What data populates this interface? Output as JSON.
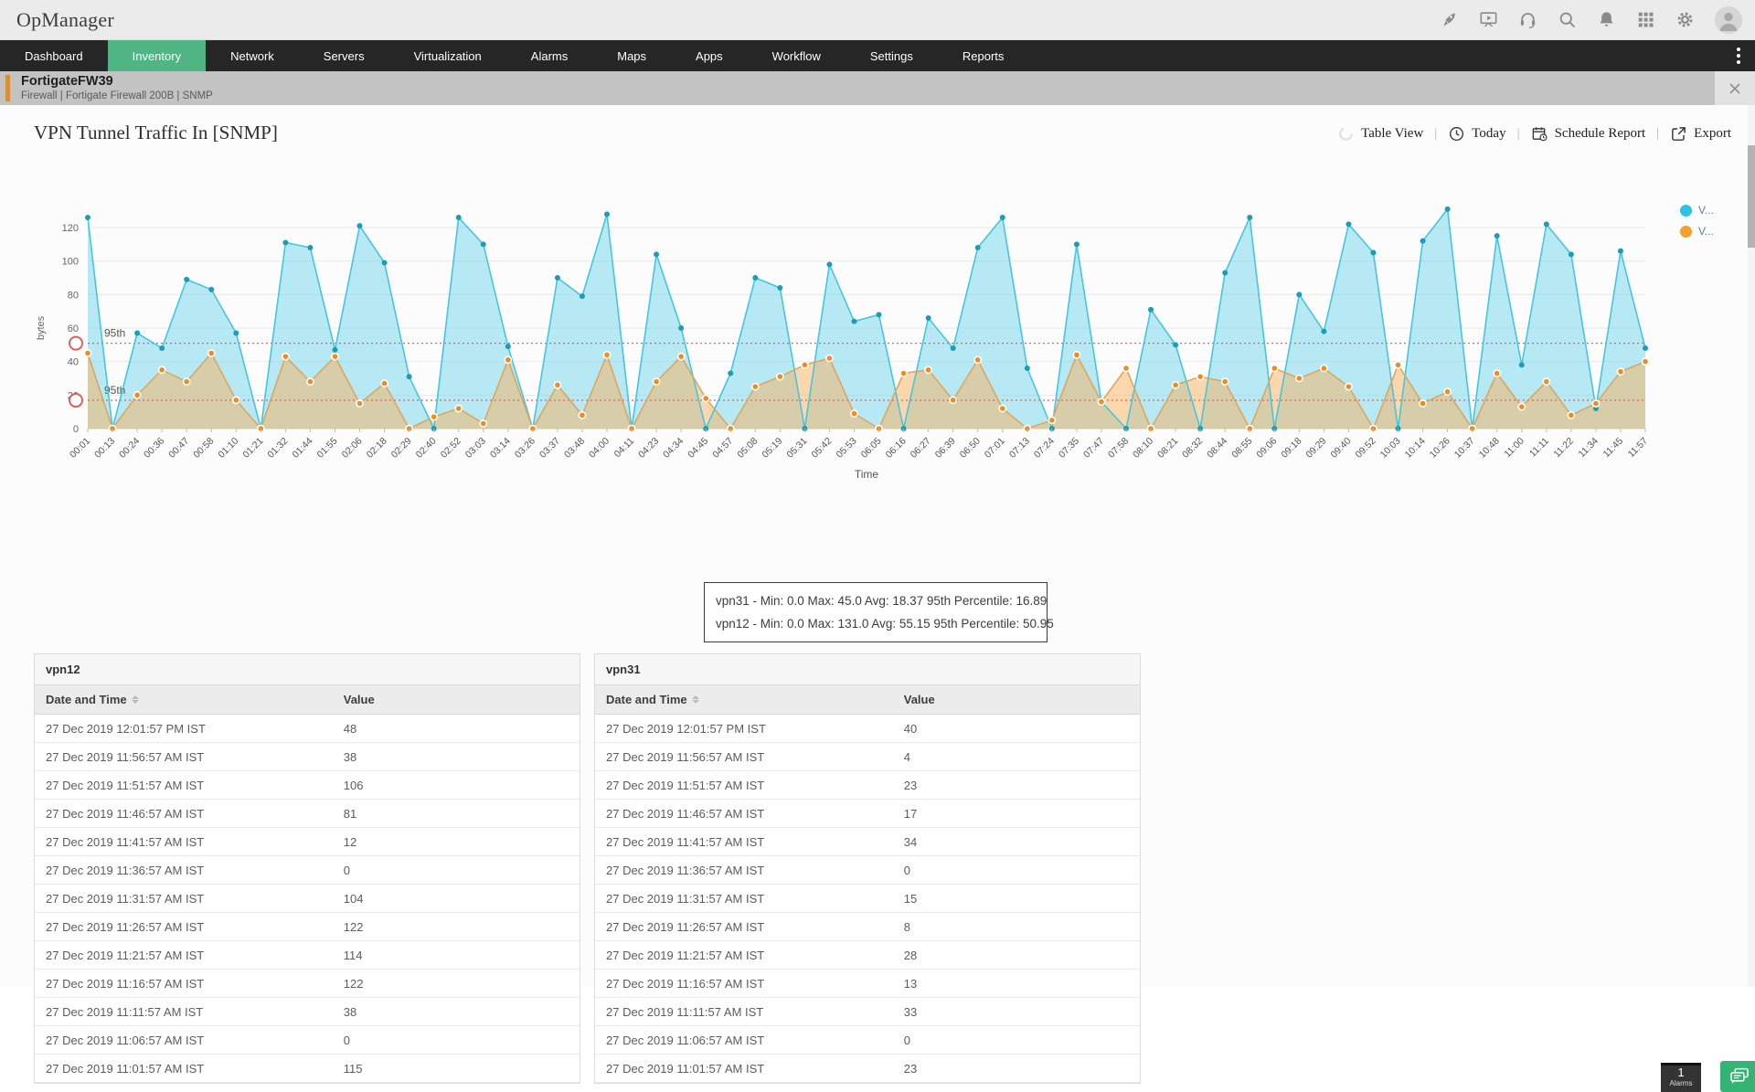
{
  "header": {
    "logo": "OpManager",
    "icons": [
      "rocket-icon",
      "presentation-icon",
      "headset-icon",
      "search-icon",
      "bell-icon",
      "apps-grid-icon",
      "gear-icon"
    ]
  },
  "nav": {
    "items": [
      {
        "label": "Dashboard",
        "active": false
      },
      {
        "label": "Inventory",
        "active": true
      },
      {
        "label": "Network",
        "active": false
      },
      {
        "label": "Servers",
        "active": false
      },
      {
        "label": "Virtualization",
        "active": false
      },
      {
        "label": "Alarms",
        "active": false
      },
      {
        "label": "Maps",
        "active": false
      },
      {
        "label": "Apps",
        "active": false
      },
      {
        "label": "Workflow",
        "active": false
      },
      {
        "label": "Settings",
        "active": false
      },
      {
        "label": "Reports",
        "active": false
      }
    ]
  },
  "device_bar": {
    "name": "FortigateFW39",
    "subtitle": "Firewall | Fortigate Firewall 200B  | SNMP"
  },
  "page": {
    "title": "VPN Tunnel Traffic In [SNMP]"
  },
  "toolbar": {
    "items": [
      {
        "icon": "table-view-icon",
        "label": "Table View"
      },
      {
        "icon": "clock-icon",
        "label": "Today"
      },
      {
        "icon": "schedule-report-icon",
        "label": "Schedule Report"
      },
      {
        "icon": "export-icon",
        "label": "Export"
      }
    ]
  },
  "chart_data": {
    "type": "area",
    "title": "VPN Tunnel Traffic In [SNMP]",
    "xlabel": "Time",
    "ylabel": "bytes",
    "ylim": [
      0,
      140
    ],
    "yticks": [
      0,
      20,
      40,
      60,
      80,
      100,
      120
    ],
    "grid": true,
    "legend_position": "right",
    "legend": [
      {
        "label": "V...",
        "color": "#2cc3e5"
      },
      {
        "label": "V...",
        "color": "#f5a02c"
      }
    ],
    "x": [
      "00:01",
      "00:13",
      "00:24",
      "00:36",
      "00:47",
      "00:58",
      "01:10",
      "01:21",
      "01:32",
      "01:44",
      "01:55",
      "02:06",
      "02:18",
      "02:29",
      "02:40",
      "02:52",
      "03:03",
      "03:14",
      "03:26",
      "03:37",
      "03:48",
      "04:00",
      "04:11",
      "04:23",
      "04:34",
      "04:45",
      "04:57",
      "05:08",
      "05:19",
      "05:31",
      "05:42",
      "05:53",
      "06:05",
      "06:16",
      "06:27",
      "06:39",
      "06:50",
      "07:01",
      "07:13",
      "07:24",
      "07:35",
      "07:47",
      "07:58",
      "08:10",
      "08:21",
      "08:32",
      "08:44",
      "08:55",
      "09:06",
      "09:18",
      "09:29",
      "09:40",
      "09:52",
      "10:03",
      "10:14",
      "10:26",
      "10:37",
      "10:48",
      "11:00",
      "11:11",
      "11:22",
      "11:34",
      "11:45",
      "11:57"
    ],
    "series": [
      {
        "name": "vpn12",
        "line_color": "#45c6df",
        "fill_color": "rgba(125,216,238,0.55)",
        "marker_color": "#1a9db6",
        "values": [
          126,
          0,
          57,
          48,
          89,
          83,
          57,
          0,
          111,
          108,
          47,
          121,
          99,
          31,
          0,
          126,
          110,
          49,
          0,
          90,
          79,
          128,
          0,
          104,
          60,
          0,
          33,
          90,
          84,
          0,
          98,
          64,
          68,
          0,
          66,
          48,
          108,
          126,
          36,
          0,
          110,
          16,
          0,
          71,
          50,
          0,
          93,
          126,
          0,
          80,
          58,
          122,
          105,
          0,
          112,
          131,
          0,
          115,
          38,
          122,
          104,
          12,
          106,
          48
        ]
      },
      {
        "name": "vpn31",
        "line_color": "#ddA65f",
        "fill_color": "rgba(247,178,94,0.5)",
        "marker_color": "#f08c1e",
        "values": [
          45,
          0,
          20,
          35,
          28,
          45,
          17,
          0,
          43,
          28,
          43,
          15,
          27,
          0,
          7,
          12,
          3,
          41,
          0,
          26,
          8,
          44,
          0,
          28,
          43,
          18,
          0,
          25,
          31,
          38,
          42,
          9,
          0,
          33,
          35,
          17,
          41,
          12,
          0,
          5,
          44,
          16,
          36,
          0,
          26,
          31,
          28,
          0,
          36,
          30,
          36,
          25,
          0,
          38,
          15,
          22,
          0,
          33,
          13,
          28,
          8,
          15,
          34,
          40
        ]
      }
    ],
    "percentile_lines": [
      {
        "label": "95th",
        "value": 50.95,
        "series": "vpn12",
        "color": "#e05f5f"
      },
      {
        "label": "95th",
        "value": 16.89,
        "series": "vpn31",
        "color": "#e05f5f"
      }
    ]
  },
  "stats_box": {
    "lines": [
      "vpn31 - Min: 0.0 Max: 45.0 Avg: 18.37 95th Percentile: 16.89",
      "vpn12 - Min: 0.0 Max: 131.0 Avg: 55.15 95th Percentile: 50.95"
    ]
  },
  "tables": [
    {
      "name": "vpn12",
      "columns": [
        "Date and Time",
        "Value"
      ],
      "rows": [
        [
          "27 Dec 2019 12:01:57 PM IST",
          "48"
        ],
        [
          "27 Dec 2019 11:56:57 AM IST",
          "38"
        ],
        [
          "27 Dec 2019 11:51:57 AM IST",
          "106"
        ],
        [
          "27 Dec 2019 11:46:57 AM IST",
          "81"
        ],
        [
          "27 Dec 2019 11:41:57 AM IST",
          "12"
        ],
        [
          "27 Dec 2019 11:36:57 AM IST",
          "0"
        ],
        [
          "27 Dec 2019 11:31:57 AM IST",
          "104"
        ],
        [
          "27 Dec 2019 11:26:57 AM IST",
          "122"
        ],
        [
          "27 Dec 2019 11:21:57 AM IST",
          "114"
        ],
        [
          "27 Dec 2019 11:16:57 AM IST",
          "122"
        ],
        [
          "27 Dec 2019 11:11:57 AM IST",
          "38"
        ],
        [
          "27 Dec 2019 11:06:57 AM IST",
          "0"
        ],
        [
          "27 Dec 2019 11:01:57 AM IST",
          "115"
        ]
      ]
    },
    {
      "name": "vpn31",
      "columns": [
        "Date and Time",
        "Value"
      ],
      "rows": [
        [
          "27 Dec 2019 12:01:57 PM IST",
          "40"
        ],
        [
          "27 Dec 2019 11:56:57 AM IST",
          "4"
        ],
        [
          "27 Dec 2019 11:51:57 AM IST",
          "23"
        ],
        [
          "27 Dec 2019 11:46:57 AM IST",
          "17"
        ],
        [
          "27 Dec 2019 11:41:57 AM IST",
          "34"
        ],
        [
          "27 Dec 2019 11:36:57 AM IST",
          "0"
        ],
        [
          "27 Dec 2019 11:31:57 AM IST",
          "15"
        ],
        [
          "27 Dec 2019 11:26:57 AM IST",
          "8"
        ],
        [
          "27 Dec 2019 11:21:57 AM IST",
          "28"
        ],
        [
          "27 Dec 2019 11:16:57 AM IST",
          "13"
        ],
        [
          "27 Dec 2019 11:11:57 AM IST",
          "33"
        ],
        [
          "27 Dec 2019 11:06:57 AM IST",
          "0"
        ],
        [
          "27 Dec 2019 11:01:57 AM IST",
          "23"
        ]
      ]
    }
  ],
  "footer": {
    "alarms_count": "1",
    "alarms_label": "Alarms",
    "chat_icon": "chat-icon"
  },
  "colors": {
    "nav_bg": "#262626",
    "nav_active": "#4eb583",
    "device_bar_accent": "#d98f33",
    "series1": "#2cc3e5",
    "series2": "#f5a02c",
    "percentile": "#e05f5f",
    "chat_green": "#35b374"
  }
}
